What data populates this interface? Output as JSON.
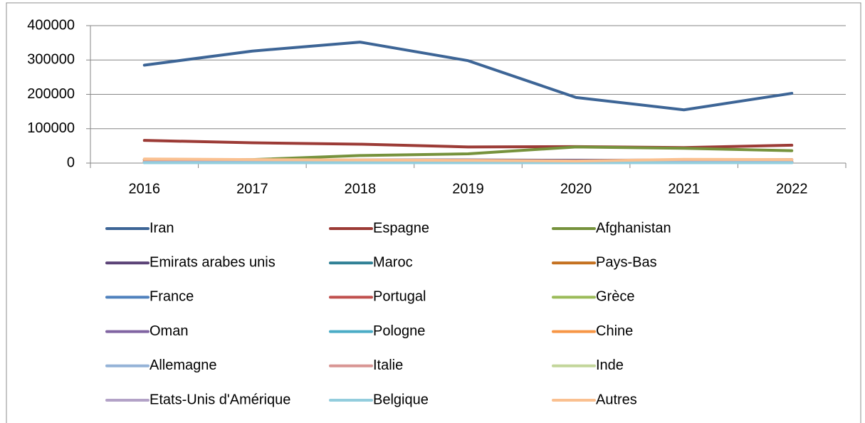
{
  "chart_data": {
    "type": "line",
    "categories": [
      "2016",
      "2017",
      "2018",
      "2019",
      "2020",
      "2021",
      "2022"
    ],
    "ylim": [
      0,
      400000
    ],
    "yticks": [
      0,
      100000,
      200000,
      300000,
      400000
    ],
    "grid": true,
    "legend": "bottom",
    "series": [
      {
        "name": "Iran",
        "color": "#3D6596",
        "values": [
          285000,
          326000,
          352000,
          298000,
          191000,
          155000,
          203000
        ]
      },
      {
        "name": "Espagne",
        "color": "#9C3B36",
        "values": [
          66000,
          59000,
          55000,
          47000,
          48000,
          45000,
          52000
        ]
      },
      {
        "name": "Afghanistan",
        "color": "#76923C",
        "values": [
          10000,
          10000,
          22000,
          27000,
          47000,
          43000,
          36000
        ]
      },
      {
        "name": "Emirats arabes unis",
        "color": "#5A4276",
        "values": [
          9000,
          8000,
          9000,
          9000,
          8000,
          9000,
          10000
        ]
      },
      {
        "name": "Maroc",
        "color": "#2F8095",
        "values": [
          2000,
          2000,
          3000,
          3000,
          2000,
          3000,
          3000
        ]
      },
      {
        "name": "Pays-Bas",
        "color": "#C4701F",
        "values": [
          4000,
          4000,
          4000,
          4000,
          3000,
          4000,
          4000
        ]
      },
      {
        "name": "France",
        "color": "#4F81BD",
        "values": [
          3000,
          3000,
          3000,
          3000,
          2000,
          3000,
          3000
        ]
      },
      {
        "name": "Portugal",
        "color": "#C0504D",
        "values": [
          3000,
          3000,
          4000,
          4000,
          3000,
          4000,
          4000
        ]
      },
      {
        "name": "Grèce",
        "color": "#9BBB59",
        "values": [
          2000,
          2000,
          2000,
          3000,
          2000,
          2000,
          2000
        ]
      },
      {
        "name": "Oman",
        "color": "#8064A2",
        "values": [
          2000,
          2000,
          2000,
          2000,
          2000,
          2000,
          2000
        ]
      },
      {
        "name": "Pologne",
        "color": "#4BACC6",
        "values": [
          1000,
          1000,
          1000,
          1000,
          1000,
          1000,
          1000
        ]
      },
      {
        "name": "Chine",
        "color": "#F79646",
        "values": [
          5000,
          5000,
          5000,
          5000,
          4000,
          5000,
          5000
        ]
      },
      {
        "name": "Allemagne",
        "color": "#95B3D7",
        "values": [
          2000,
          2000,
          2000,
          2000,
          1000,
          2000,
          2000
        ]
      },
      {
        "name": "Italie",
        "color": "#D99694",
        "values": [
          3000,
          3000,
          3000,
          3000,
          2000,
          3000,
          3000
        ]
      },
      {
        "name": "Inde",
        "color": "#C3D69B",
        "values": [
          2000,
          2000,
          2000,
          2000,
          1000,
          2000,
          2000
        ]
      },
      {
        "name": "Etats-Unis d'Amérique",
        "color": "#B3A2C7",
        "values": [
          2000,
          2000,
          2000,
          2000,
          1000,
          2000,
          2000
        ]
      },
      {
        "name": "Belgique",
        "color": "#93CDDD",
        "values": [
          1000,
          1000,
          1000,
          1000,
          1000,
          1000,
          1000
        ]
      },
      {
        "name": "Autres",
        "color": "#FAC090",
        "values": [
          12000,
          10000,
          9000,
          8000,
          6000,
          11000,
          10000
        ]
      }
    ]
  }
}
